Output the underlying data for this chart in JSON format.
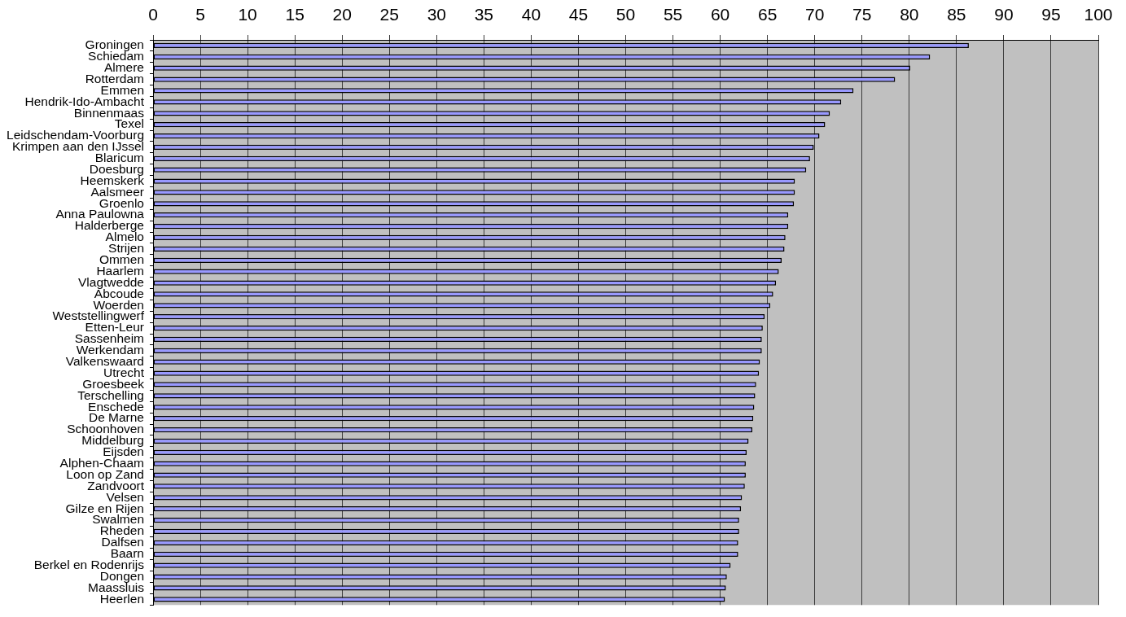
{
  "chart_data": {
    "type": "bar",
    "orientation": "horizontal",
    "categories": [
      "Groningen",
      "Schiedam",
      "Almere",
      "Rotterdam",
      "Emmen",
      "Hendrik-Ido-Ambacht",
      "Binnenmaas",
      "Texel",
      "Leidschendam-Voorburg",
      "Krimpen aan den IJssel",
      "Blaricum",
      "Doesburg",
      "Heemskerk",
      "Aalsmeer",
      "Groenlo",
      "Anna Paulowna",
      "Halderberge",
      "Almelo",
      "Strijen",
      "Ommen",
      "Haarlem",
      "Vlagtwedde",
      "Abcoude",
      "Woerden",
      "Weststellingwerf",
      "Etten-Leur",
      "Sassenheim",
      "Werkendam",
      "Valkenswaard",
      "Utrecht",
      "Groesbeek",
      "Terschelling",
      "Enschede",
      "De Marne",
      "Schoonhoven",
      "Middelburg",
      "Eijsden",
      "Alphen-Chaam",
      "Loon op Zand",
      "Zandvoort",
      "Velsen",
      "Gilze en Rijen",
      "Swalmen",
      "Rheden",
      "Dalfsen",
      "Baarn",
      "Berkel en Rodenrijs",
      "Dongen",
      "Maassluis",
      "Heerlen"
    ],
    "values": [
      86.3,
      82.2,
      80.1,
      78.5,
      74.1,
      72.8,
      71.6,
      71.1,
      70.5,
      69.9,
      69.5,
      69.1,
      67.9,
      67.9,
      67.8,
      67.2,
      67.2,
      66.9,
      66.8,
      66.5,
      66.2,
      65.9,
      65.6,
      65.3,
      64.7,
      64.5,
      64.4,
      64.4,
      64.2,
      64.1,
      63.8,
      63.7,
      63.6,
      63.5,
      63.4,
      63.0,
      62.8,
      62.7,
      62.7,
      62.6,
      62.3,
      62.2,
      62.0,
      62.0,
      61.9,
      61.9,
      61.1,
      60.7,
      60.6,
      60.5
    ],
    "color": "#9999ff",
    "xlim": [
      0,
      100
    ],
    "xticks": [
      0,
      5,
      10,
      15,
      20,
      25,
      30,
      35,
      40,
      45,
      50,
      55,
      60,
      65,
      70,
      75,
      80,
      85,
      90,
      95,
      100
    ],
    "grid": "x"
  }
}
